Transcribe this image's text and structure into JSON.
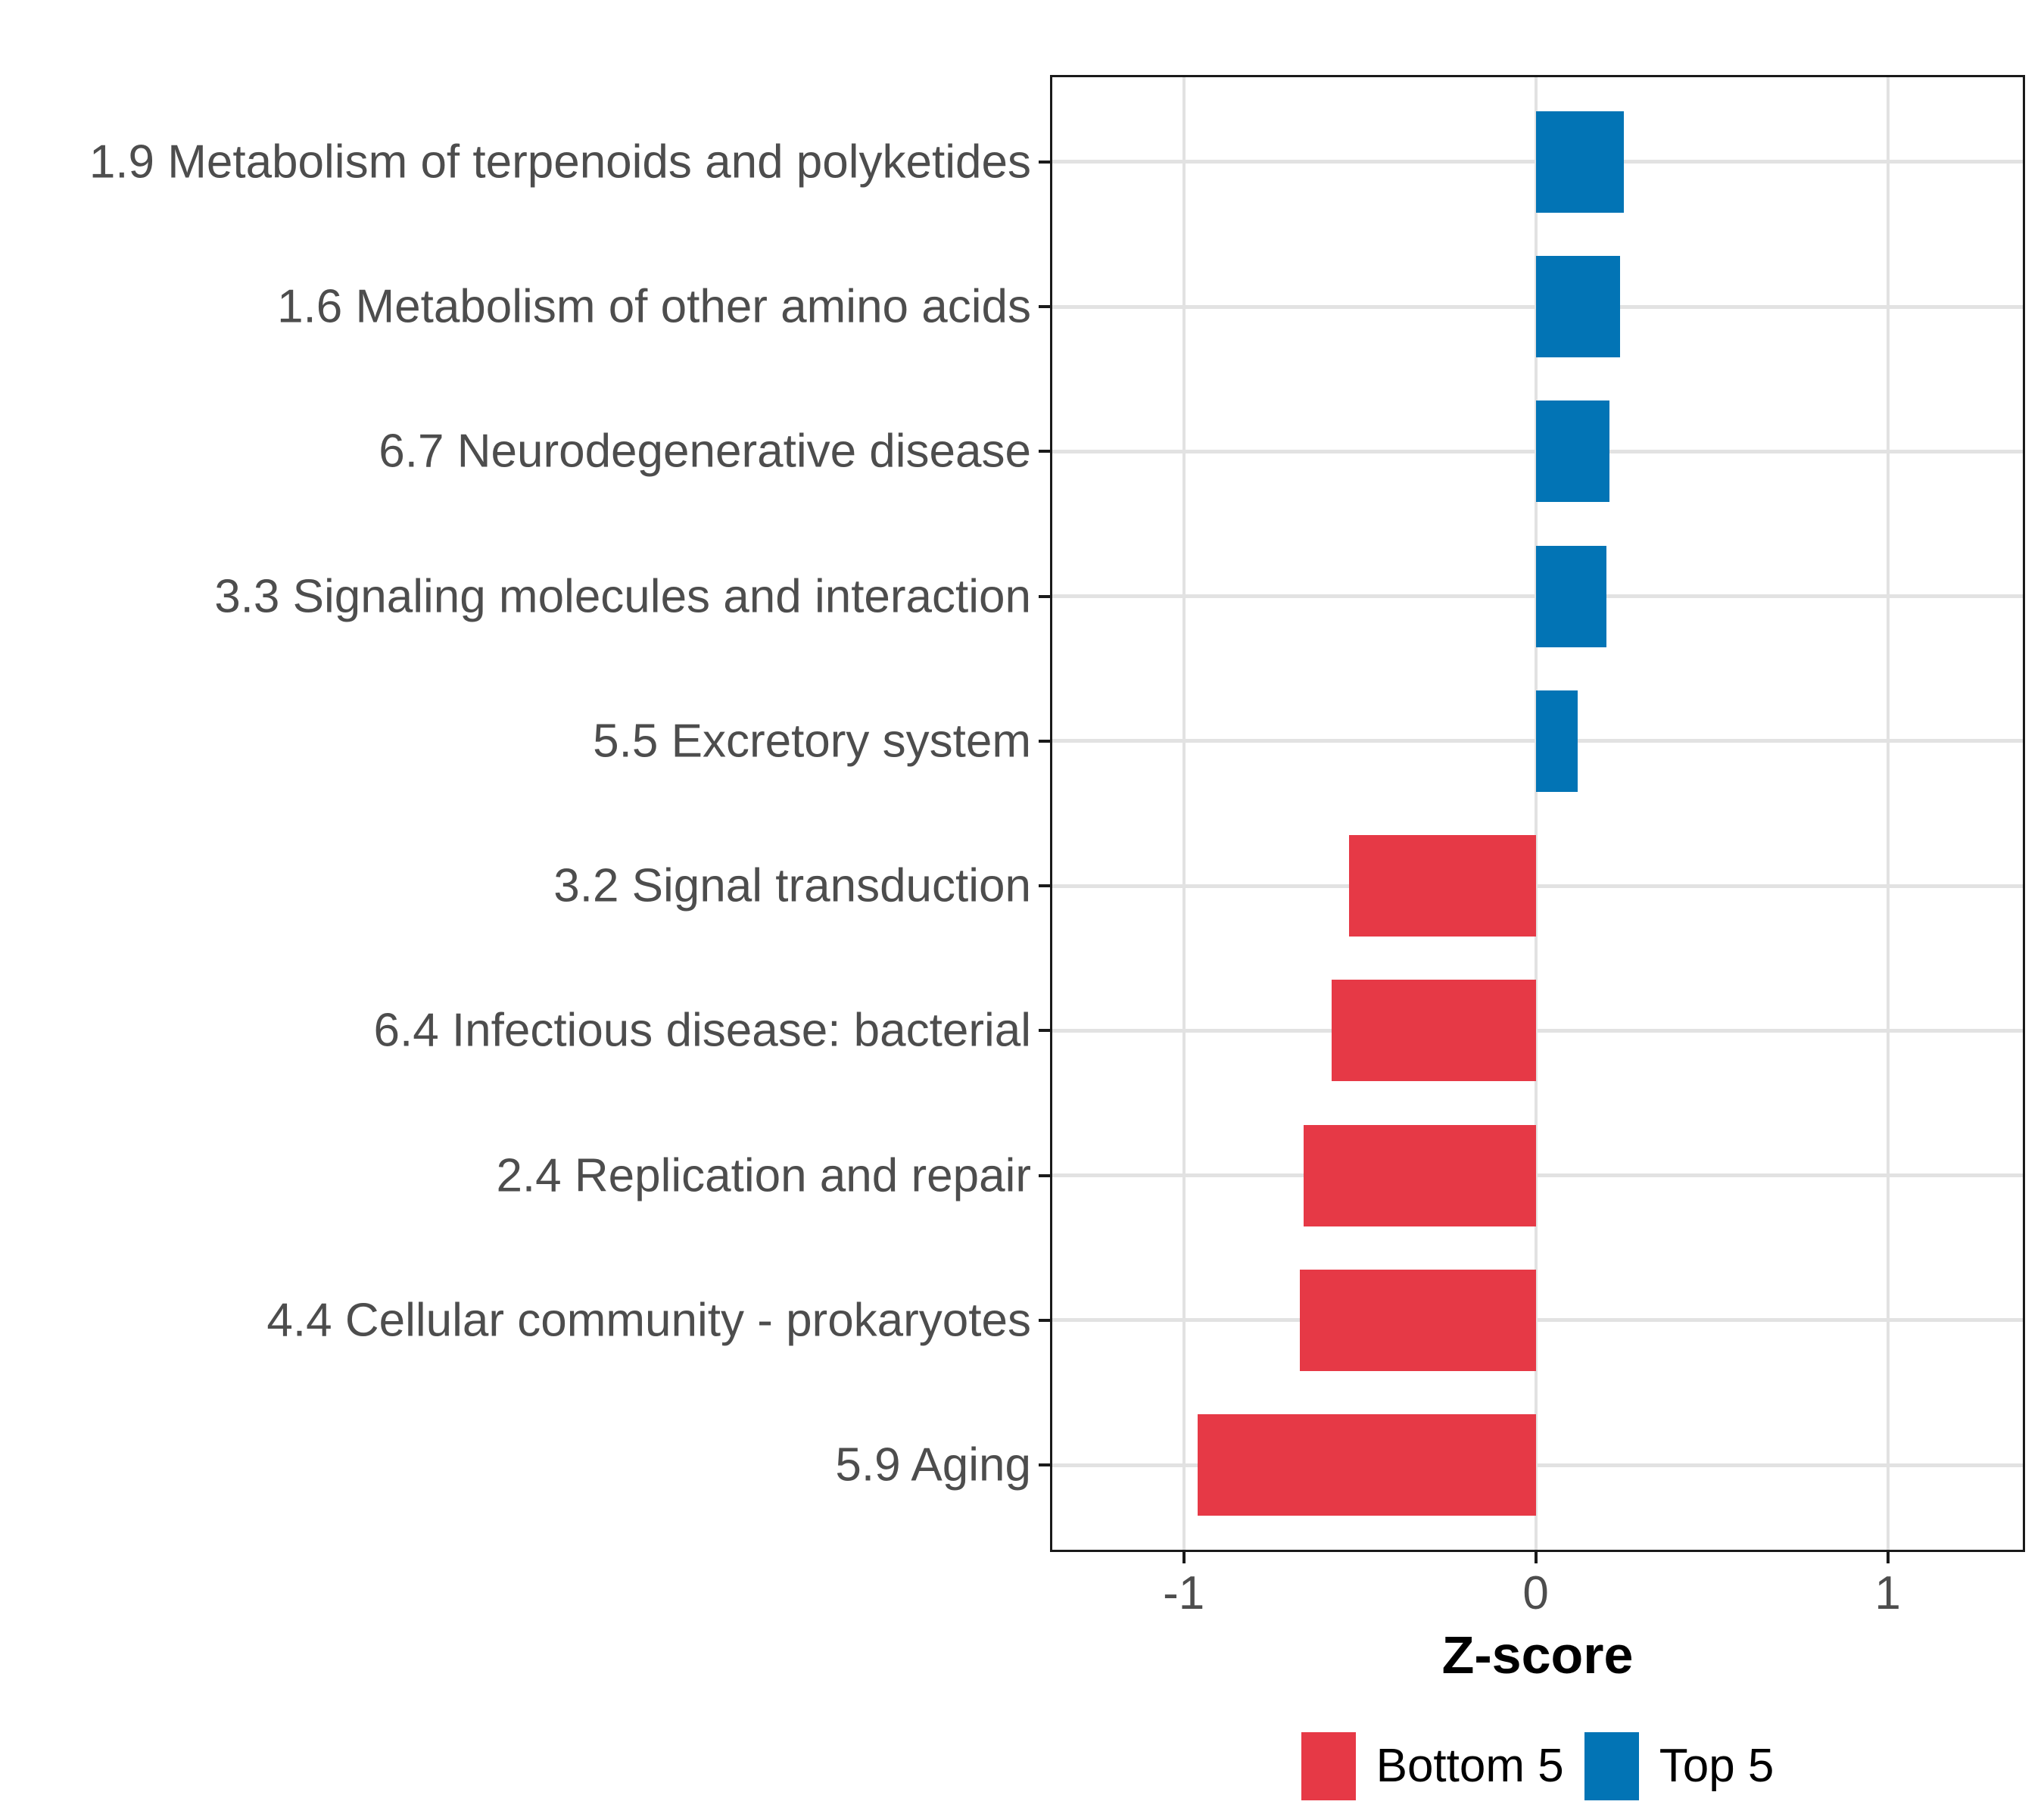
{
  "chart_data": {
    "type": "bar",
    "orientation": "horizontal",
    "title": "",
    "xlabel": "Z-score",
    "ylabel": "",
    "categories": [
      "1.9 Metabolism of terpenoids and polyketides",
      "1.6 Metabolism of other amino acids",
      "6.7 Neurodegenerative disease",
      "3.3 Signaling molecules and interaction",
      "5.5 Excretory system",
      "3.2 Signal transduction",
      "6.4 Infectious disease: bacterial",
      "2.4 Replication and repair",
      "4.4 Cellular community - prokaryotes",
      "5.9 Aging"
    ],
    "values": [
      0.25,
      0.24,
      0.21,
      0.2,
      0.12,
      -0.53,
      -0.58,
      -0.66,
      -0.67,
      -0.96
    ],
    "groups": [
      "Top 5",
      "Top 5",
      "Top 5",
      "Top 5",
      "Top 5",
      "Bottom 5",
      "Bottom 5",
      "Bottom 5",
      "Bottom 5",
      "Bottom 5"
    ],
    "x_ticks": [
      -1,
      0,
      1
    ],
    "x_tick_labels": [
      "-1",
      "0",
      "1"
    ],
    "xlim": [
      -1.38,
      1.39
    ],
    "grid": "major-only",
    "bar_width_fraction": 0.7,
    "legend": {
      "position": "bottom",
      "entries": [
        {
          "label": "Bottom 5",
          "color": "#E63946"
        },
        {
          "label": "Top 5",
          "color": "#0274B5"
        }
      ]
    }
  },
  "colors": {
    "bottom5": "#E63946",
    "top5": "#0274B5",
    "gridline": "#E2E2E2",
    "panel_border": "#1A1A1A",
    "axis_text": "#4D4D4D",
    "axis_title_text": "#000000",
    "background": "#FFFFFF"
  }
}
